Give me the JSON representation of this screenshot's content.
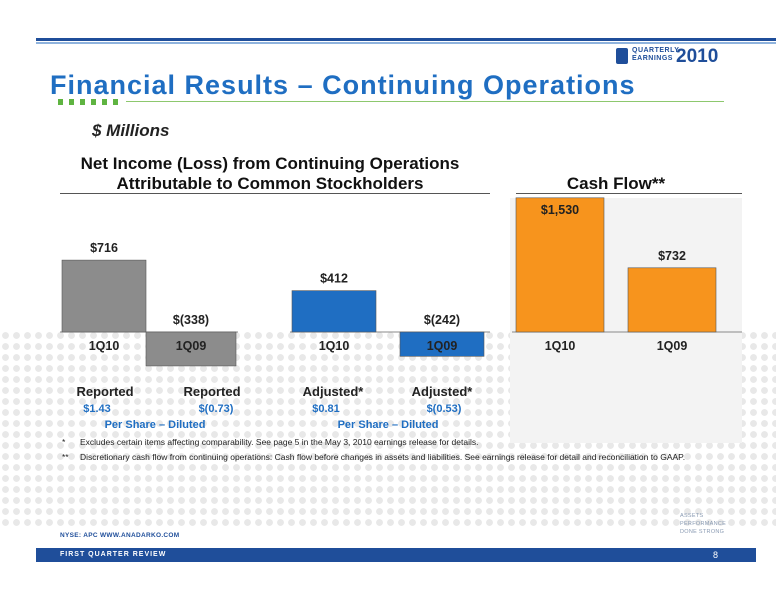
{
  "header": {
    "logo_line1": "QUARTERLY",
    "logo_line2": "EARNINGS",
    "logo_year": "2010",
    "title": "Financial Results – Continuing Operations",
    "units": "$ Millions"
  },
  "net_income": {
    "title_line1": "Net Income (Loss) from Continuing Operations",
    "title_line2": "Attributable to Common Stockholders",
    "row_labels": [
      "Reported",
      "Reported",
      "Adjusted*",
      "Adjusted*"
    ],
    "eps": [
      "$1.43",
      "$(0.73)",
      "$0.81",
      "$(0.53)"
    ],
    "per_share_label_1": "Per Share – Diluted",
    "per_share_label_2": "Per Share – Diluted"
  },
  "cash_flow": {
    "title": "Cash Flow**"
  },
  "chart_data": [
    {
      "type": "bar",
      "title": "Net Income (Loss) from Continuing Operations Attributable to Common Stockholders – Reported",
      "categories": [
        "1Q10",
        "1Q09"
      ],
      "values": [
        716,
        -338
      ],
      "data_labels": [
        "$716",
        "$(338)"
      ],
      "color": "#8c8c8c"
    },
    {
      "type": "bar",
      "title": "Net Income (Loss) from Continuing Operations Attributable to Common Stockholders – Adjusted*",
      "categories": [
        "1Q10",
        "1Q09"
      ],
      "values": [
        412,
        -242
      ],
      "data_labels": [
        "$412",
        "$(242)"
      ],
      "color": "#1f6ec2"
    },
    {
      "type": "bar",
      "title": "Cash Flow**",
      "categories": [
        "1Q10",
        "1Q09"
      ],
      "values": [
        1530,
        732
      ],
      "data_labels": [
        "$1,530",
        "$732"
      ],
      "color": "#f7941d"
    }
  ],
  "notes": [
    {
      "marker": "*",
      "text": "Excludes certain items affecting comparability. See page 5 in the May 3, 2010 earnings release for details."
    },
    {
      "marker": "**",
      "text": "Discretionary cash flow from continuing operations: Cash flow before changes in assets and liabilities. See earnings release for detail and reconciliation to GAAP."
    }
  ],
  "footer": {
    "url": "NYSE: APC    WWW.ANADARKO.COM",
    "section": "FIRST QUARTER REVIEW",
    "page": "8",
    "assets_line1": "ASSETS",
    "assets_line2": "PERFORMANCE",
    "assets_line3": "DONE STRONG"
  }
}
